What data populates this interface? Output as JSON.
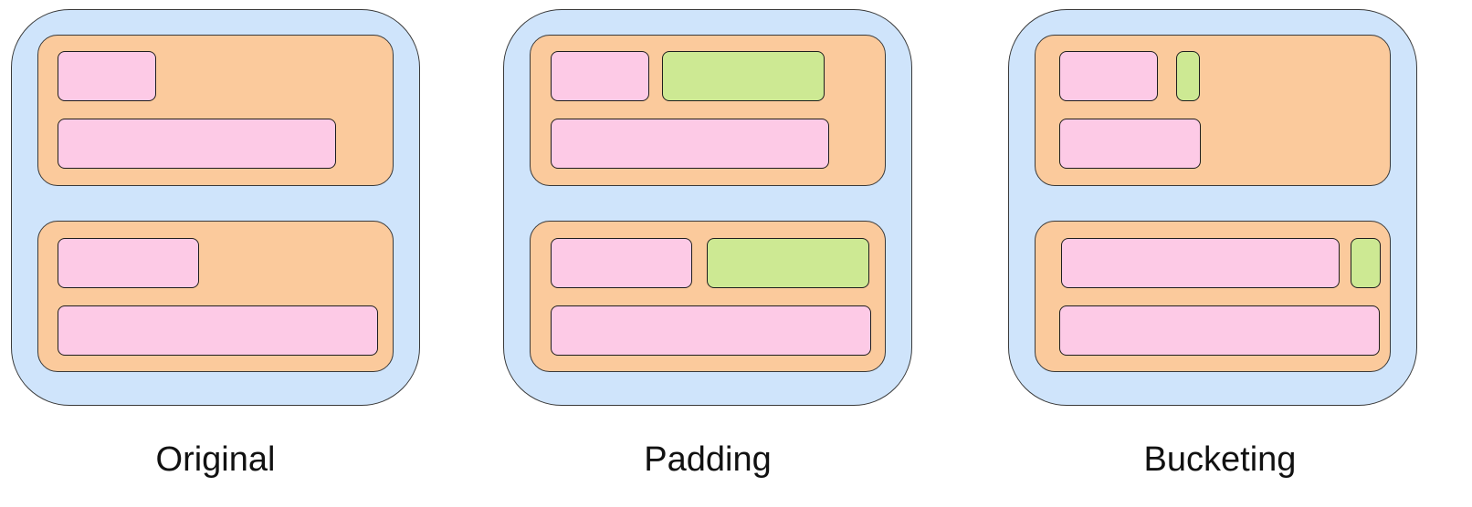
{
  "colors": {
    "panel": "#cfe4fb",
    "group": "#fbca9c",
    "sequence": "#fdcae6",
    "padding": "#cde993",
    "border": "#3a3a3a"
  },
  "panels": [
    {
      "label": "Original"
    },
    {
      "label": "Padding"
    },
    {
      "label": "Bucketing"
    }
  ]
}
